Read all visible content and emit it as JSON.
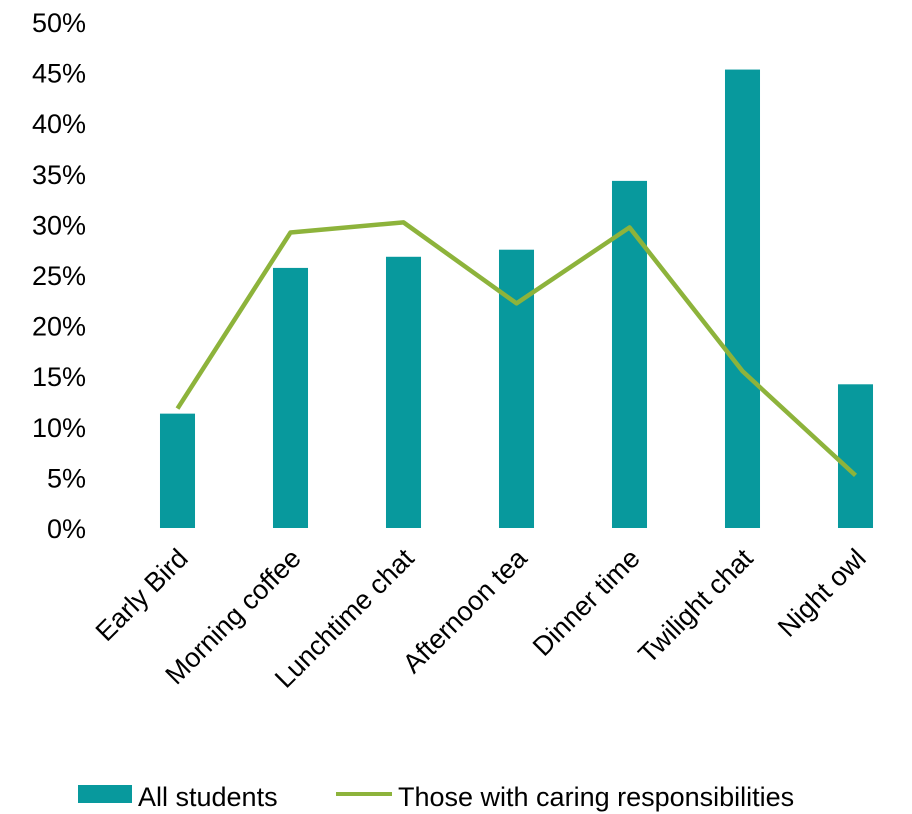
{
  "chart_data": {
    "type": "bar",
    "categories": [
      "Early Bird",
      "Morning coffee",
      "Lunchtime chat",
      "Afternoon tea",
      "Dinner time",
      "Twilight chat",
      "Night owl"
    ],
    "series": [
      {
        "name": "All students",
        "type": "bar",
        "color": "#08999d",
        "values": [
          11.3,
          25.7,
          26.8,
          27.5,
          34.3,
          45.3,
          14.2
        ]
      },
      {
        "name": "Those with caring responsibilities",
        "type": "line",
        "color": "#8db33b",
        "values": [
          11.8,
          29.2,
          30.2,
          22.2,
          29.7,
          15.5,
          5.2
        ]
      }
    ],
    "y_ticks": [
      "0%",
      "5%",
      "10%",
      "15%",
      "20%",
      "25%",
      "30%",
      "35%",
      "40%",
      "45%",
      "50%"
    ],
    "ylim": [
      0,
      50
    ],
    "y_unit": "%",
    "grid": false,
    "legend_position": "bottom"
  }
}
